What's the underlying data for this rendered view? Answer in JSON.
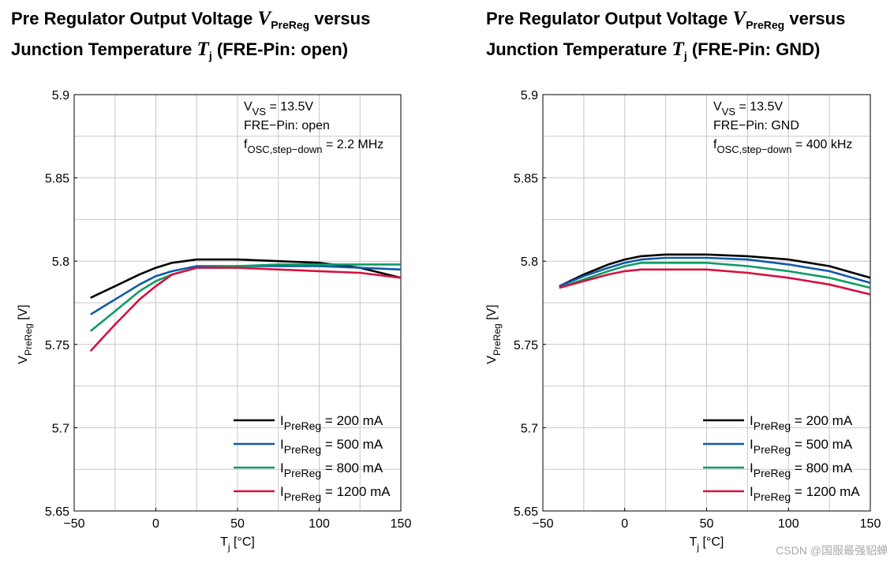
{
  "chart_data": [
    {
      "type": "line",
      "title": {
        "pre": "Pre Regulator Output Voltage",
        "sym1": "V",
        "sub1": "PreReg",
        "mid": "versus",
        "line2": "Junction Temperature",
        "sym2": "T",
        "sub2": "j",
        "post": "(FRE-Pin: open)"
      },
      "xlabel": {
        "main": "T",
        "sub": "j",
        "unit": "[°C]"
      },
      "ylabel": {
        "main": "V",
        "sub": "PreReg",
        "unit": "[V]"
      },
      "xlim": [
        -50,
        150
      ],
      "ylim": [
        5.65,
        5.9
      ],
      "xticks": [
        -50,
        0,
        50,
        100,
        150
      ],
      "xtick_labels": [
        "−50",
        "0",
        "50",
        "100",
        "150"
      ],
      "yticks": [
        5.65,
        5.7,
        5.75,
        5.8,
        5.85,
        5.9
      ],
      "ytick_labels": [
        "5.65",
        "5.7",
        "5.75",
        "5.8",
        "5.85",
        "5.9"
      ],
      "annotations": [
        {
          "main": "V",
          "sub": "VS",
          "rest": " = 13.5V"
        },
        {
          "main": "FRE−Pin: open",
          "sub": "",
          "rest": ""
        },
        {
          "main": "f",
          "sub": "OSC,step−down",
          "rest": " = 2.2 MHz"
        }
      ],
      "legend_position": "bottom-right",
      "x": [
        -40,
        -25,
        -10,
        0,
        10,
        25,
        50,
        75,
        100,
        125,
        150
      ],
      "series": [
        {
          "name": "200 mA",
          "color": "#000000",
          "values": [
            5.778,
            5.785,
            5.792,
            5.796,
            5.799,
            5.801,
            5.801,
            5.8,
            5.799,
            5.796,
            5.79
          ]
        },
        {
          "name": "500 mA",
          "color": "#0e5aa7",
          "values": [
            5.768,
            5.777,
            5.786,
            5.791,
            5.794,
            5.797,
            5.797,
            5.797,
            5.797,
            5.796,
            5.795
          ]
        },
        {
          "name": "800 mA",
          "color": "#0e9b63",
          "values": [
            5.758,
            5.77,
            5.782,
            5.788,
            5.792,
            5.796,
            5.797,
            5.798,
            5.798,
            5.798,
            5.798
          ]
        },
        {
          "name": "1200 mA",
          "color": "#d5113f",
          "values": [
            5.746,
            5.762,
            5.777,
            5.785,
            5.792,
            5.796,
            5.796,
            5.795,
            5.794,
            5.793,
            5.79
          ]
        }
      ]
    },
    {
      "type": "line",
      "title": {
        "pre": "Pre Regulator Output Voltage",
        "sym1": "V",
        "sub1": "PreReg",
        "mid": "versus",
        "line2": "Junction Temperature",
        "sym2": "T",
        "sub2": "j",
        "post": "(FRE-Pin: GND)"
      },
      "xlabel": {
        "main": "T",
        "sub": "j",
        "unit": "[°C]"
      },
      "ylabel": {
        "main": "V",
        "sub": "PreReg",
        "unit": "[V]"
      },
      "xlim": [
        -50,
        150
      ],
      "ylim": [
        5.65,
        5.9
      ],
      "xticks": [
        -50,
        0,
        50,
        100,
        150
      ],
      "xtick_labels": [
        "−50",
        "0",
        "50",
        "100",
        "150"
      ],
      "yticks": [
        5.65,
        5.7,
        5.75,
        5.8,
        5.85,
        5.9
      ],
      "ytick_labels": [
        "5.65",
        "5.7",
        "5.75",
        "5.8",
        "5.85",
        "5.9"
      ],
      "annotations": [
        {
          "main": "V",
          "sub": "VS",
          "rest": " = 13.5V"
        },
        {
          "main": "FRE−Pin: GND",
          "sub": "",
          "rest": ""
        },
        {
          "main": "f",
          "sub": "OSC,step−down",
          "rest": " = 400 kHz"
        }
      ],
      "legend_position": "bottom-right",
      "x": [
        -40,
        -25,
        -10,
        0,
        10,
        25,
        50,
        75,
        100,
        125,
        150
      ],
      "series": [
        {
          "name": "200 mA",
          "color": "#000000",
          "values": [
            5.785,
            5.792,
            5.798,
            5.801,
            5.803,
            5.804,
            5.804,
            5.803,
            5.801,
            5.797,
            5.79
          ]
        },
        {
          "name": "500 mA",
          "color": "#0e5aa7",
          "values": [
            5.785,
            5.791,
            5.796,
            5.799,
            5.801,
            5.802,
            5.802,
            5.801,
            5.798,
            5.794,
            5.787
          ]
        },
        {
          "name": "800 mA",
          "color": "#0e9b63",
          "values": [
            5.784,
            5.789,
            5.794,
            5.797,
            5.799,
            5.799,
            5.799,
            5.797,
            5.794,
            5.79,
            5.784
          ]
        },
        {
          "name": "1200 mA",
          "color": "#d5113f",
          "values": [
            5.784,
            5.788,
            5.792,
            5.794,
            5.795,
            5.795,
            5.795,
            5.793,
            5.79,
            5.786,
            5.78
          ]
        }
      ]
    }
  ],
  "legend_label": {
    "main": "I",
    "sub": "PreReg",
    "joiner": " = "
  },
  "watermark": "CSDN @国服最强貂蝉"
}
